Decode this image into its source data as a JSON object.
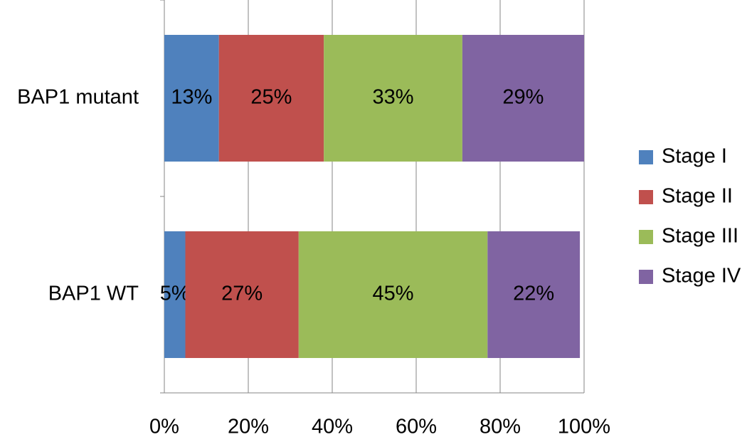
{
  "chart_data": {
    "type": "stacked-bar-horizontal",
    "categories": [
      "BAP1 mutant",
      "BAP1 WT"
    ],
    "series": [
      {
        "name": "Stage I",
        "color": "#4f81bd",
        "values": [
          13,
          5
        ],
        "value_labels": [
          "13%",
          "5%"
        ]
      },
      {
        "name": "Stage II",
        "color": "#c0504d",
        "values": [
          25,
          27
        ],
        "value_labels": [
          "25%",
          "27%"
        ]
      },
      {
        "name": "Stage III",
        "color": "#9bbb59",
        "values": [
          33,
          45
        ],
        "value_labels": [
          "33%",
          "45%"
        ]
      },
      {
        "name": "Stage IV",
        "color": "#8064a2",
        "values": [
          29,
          22
        ],
        "value_labels": [
          "29%",
          "22%"
        ]
      }
    ],
    "xlim": [
      0,
      100
    ],
    "xticks": [
      {
        "value": 0,
        "label": "0%"
      },
      {
        "value": 20,
        "label": "20%"
      },
      {
        "value": 40,
        "label": "40%"
      },
      {
        "value": 60,
        "label": "60%"
      },
      {
        "value": 80,
        "label": "80%"
      },
      {
        "value": 100,
        "label": "100%"
      }
    ],
    "grid": true,
    "legend": "right"
  }
}
